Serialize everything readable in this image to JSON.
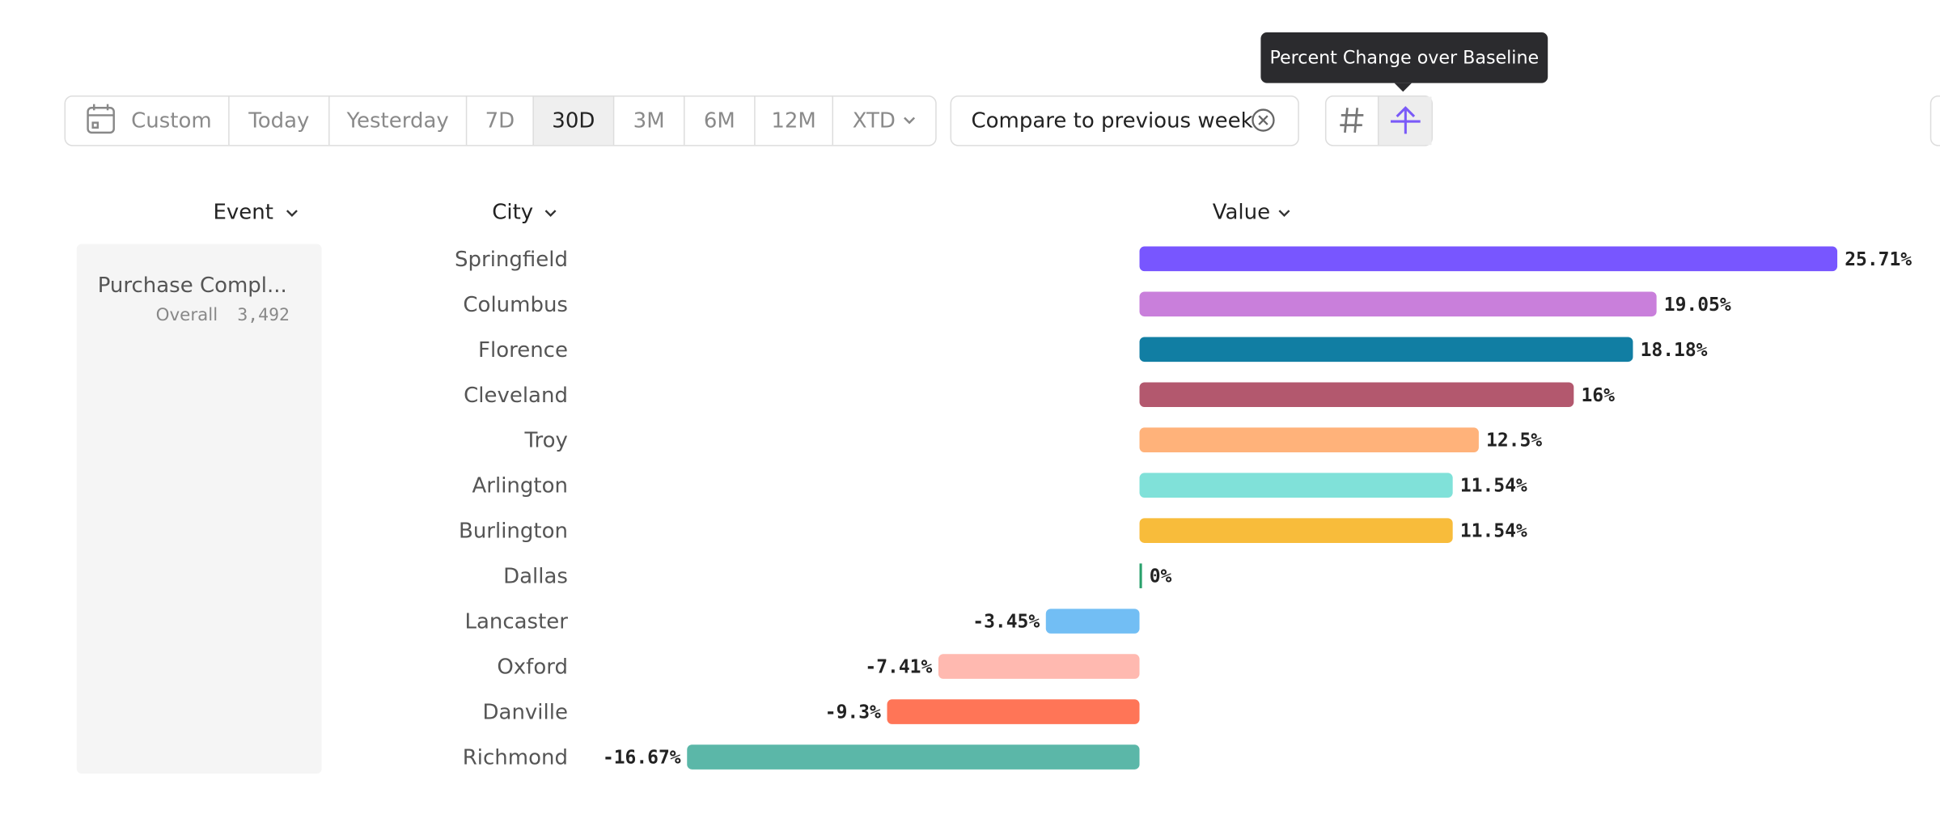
{
  "toolbar": {
    "ranges": [
      "Custom",
      "Today",
      "Yesterday",
      "7D",
      "30D",
      "3M",
      "6M",
      "12M",
      "XTD"
    ],
    "selected": "30D",
    "compare": "Compare to previous week"
  },
  "tooltip": "Percent Change over Baseline",
  "columns": [
    "Event",
    "City",
    "Value"
  ],
  "event": {
    "name": "Purchase Compl...",
    "overall_label": "Overall",
    "overall_value": "3,492"
  },
  "chart_data": {
    "type": "bar",
    "orientation": "horizontal",
    "categories": [
      "Springfield",
      "Columbus",
      "Florence",
      "Cleveland",
      "Troy",
      "Arlington",
      "Burlington",
      "Dallas",
      "Lancaster",
      "Oxford",
      "Danville",
      "Richmond"
    ],
    "values": [
      25.71,
      19.05,
      18.18,
      16,
      12.5,
      11.54,
      11.54,
      0,
      -3.45,
      -7.41,
      -9.3,
      -16.67
    ],
    "value_labels": [
      "25.71%",
      "19.05%",
      "18.18%",
      "16%",
      "12.5%",
      "11.54%",
      "11.54%",
      "0%",
      "-3.45%",
      "-7.41%",
      "-9.3%",
      "-16.67%"
    ],
    "colors": [
      "#7856ff",
      "#c97fdb",
      "#117ea3",
      "#b3586e",
      "#ffb27a",
      "#80e1d9",
      "#f8bc3b",
      "#28a06b",
      "#72bef4",
      "#ffb9b0",
      "#ff7557",
      "#5bb7a8"
    ]
  }
}
